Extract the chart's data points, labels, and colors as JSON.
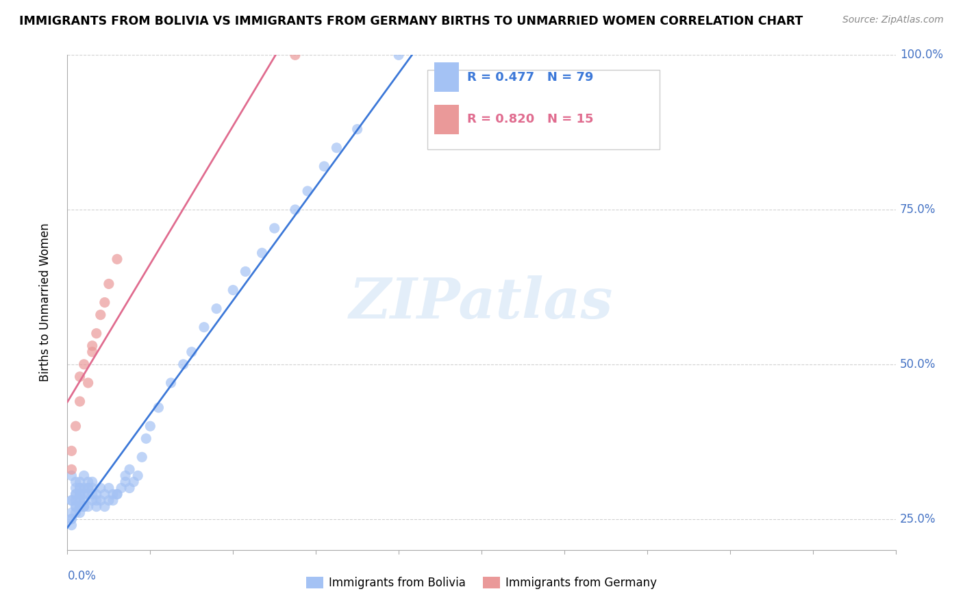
{
  "title": "IMMIGRANTS FROM BOLIVIA VS IMMIGRANTS FROM GERMANY BIRTHS TO UNMARRIED WOMEN CORRELATION CHART",
  "source": "Source: ZipAtlas.com",
  "ylabel": "Births to Unmarried Women",
  "r_bolivia": 0.477,
  "n_bolivia": 79,
  "r_germany": 0.82,
  "n_germany": 15,
  "color_bolivia": "#a4c2f4",
  "color_germany": "#ea9999",
  "color_bolivia_line": "#3c78d8",
  "color_germany_line": "#e06c8f",
  "watermark_color": "#ddeeff",
  "xlim": [
    0.0,
    0.2
  ],
  "ylim": [
    0.2,
    1.0
  ],
  "bolivia_x": [
    0.001,
    0.002,
    0.001,
    0.003,
    0.002,
    0.001,
    0.003,
    0.002,
    0.001,
    0.003,
    0.002,
    0.001,
    0.003,
    0.002,
    0.001,
    0.003,
    0.004,
    0.003,
    0.002,
    0.004,
    0.003,
    0.002,
    0.001,
    0.002,
    0.003,
    0.004,
    0.005,
    0.004,
    0.003,
    0.005,
    0.004,
    0.003,
    0.006,
    0.005,
    0.004,
    0.006,
    0.005,
    0.007,
    0.006,
    0.005,
    0.007,
    0.006,
    0.008,
    0.007,
    0.009,
    0.008,
    0.01,
    0.009,
    0.011,
    0.01,
    0.012,
    0.011,
    0.013,
    0.012,
    0.014,
    0.015,
    0.014,
    0.016,
    0.015,
    0.017,
    0.018,
    0.019,
    0.02,
    0.022,
    0.025,
    0.028,
    0.03,
    0.033,
    0.036,
    0.04,
    0.043,
    0.047,
    0.05,
    0.055,
    0.058,
    0.062,
    0.065,
    0.07,
    0.08
  ],
  "bolivia_y": [
    0.28,
    0.27,
    0.32,
    0.29,
    0.31,
    0.26,
    0.3,
    0.28,
    0.25,
    0.27,
    0.29,
    0.24,
    0.26,
    0.3,
    0.28,
    0.31,
    0.29,
    0.27,
    0.26,
    0.28,
    0.3,
    0.27,
    0.25,
    0.29,
    0.28,
    0.3,
    0.29,
    0.27,
    0.28,
    0.3,
    0.32,
    0.29,
    0.28,
    0.3,
    0.27,
    0.29,
    0.31,
    0.28,
    0.3,
    0.27,
    0.29,
    0.31,
    0.28,
    0.27,
    0.29,
    0.3,
    0.28,
    0.27,
    0.29,
    0.3,
    0.29,
    0.28,
    0.3,
    0.29,
    0.31,
    0.3,
    0.32,
    0.31,
    0.33,
    0.32,
    0.35,
    0.38,
    0.4,
    0.43,
    0.47,
    0.5,
    0.52,
    0.56,
    0.59,
    0.62,
    0.65,
    0.68,
    0.72,
    0.75,
    0.78,
    0.82,
    0.85,
    0.88,
    1.0
  ],
  "germany_x": [
    0.001,
    0.001,
    0.002,
    0.003,
    0.003,
    0.004,
    0.005,
    0.006,
    0.006,
    0.007,
    0.008,
    0.009,
    0.01,
    0.012,
    0.055
  ],
  "germany_y": [
    0.33,
    0.36,
    0.4,
    0.44,
    0.48,
    0.5,
    0.47,
    0.53,
    0.52,
    0.55,
    0.58,
    0.6,
    0.63,
    0.67,
    1.0
  ],
  "xtick_count": 11,
  "ytick_values": [
    0.25,
    0.5,
    0.75,
    1.0
  ],
  "ytick_labels": [
    "25.0%",
    "50.0%",
    "75.0%",
    "100.0%"
  ]
}
